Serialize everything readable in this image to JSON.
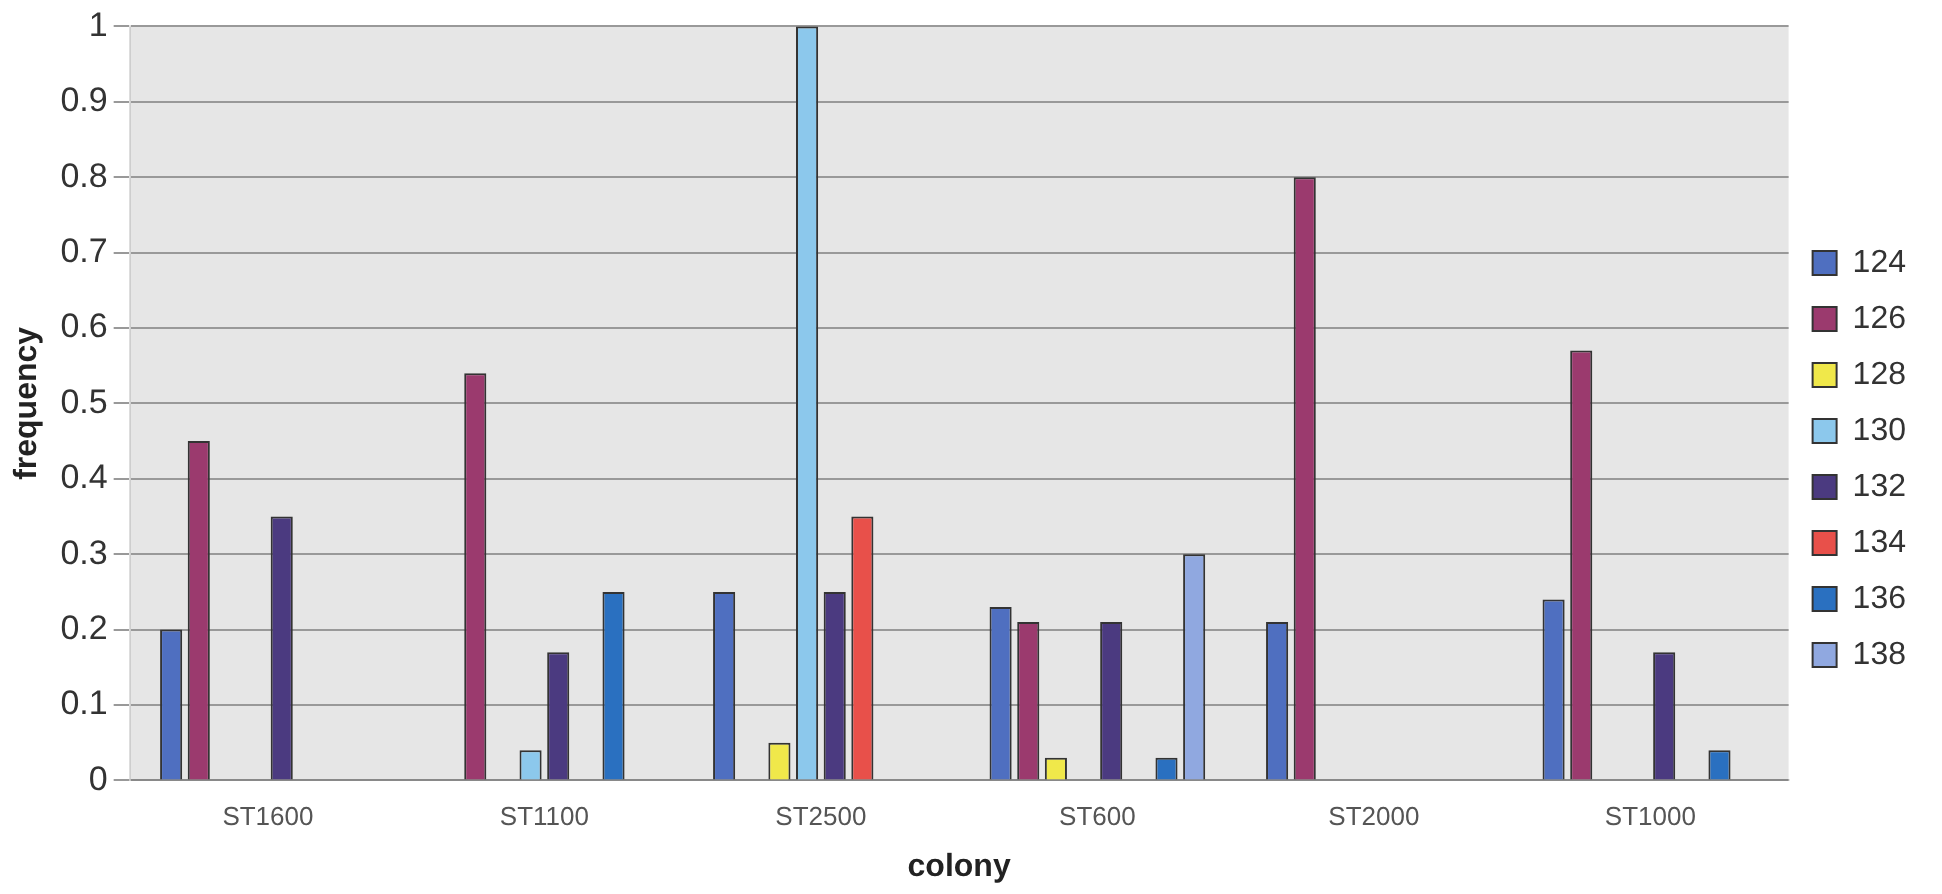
{
  "chart_data": {
    "type": "bar",
    "xlabel": "colony",
    "ylabel": "frequency",
    "categories": [
      "ST1600",
      "ST1100",
      "ST2500",
      "ST600",
      "ST2000",
      "ST1000"
    ],
    "series": [
      {
        "name": "124",
        "color": "#4f6fc0",
        "values": [
          0.2,
          0,
          0.25,
          0.23,
          0.21,
          0.24
        ]
      },
      {
        "name": "126",
        "color": "#9b3a6e",
        "values": [
          0.45,
          0.54,
          0,
          0.21,
          0.8,
          0.57
        ]
      },
      {
        "name": "128",
        "color": "#f0e84a",
        "values": [
          0,
          0,
          0.05,
          0.03,
          0,
          0
        ]
      },
      {
        "name": "130",
        "color": "#8cc8ec",
        "values": [
          0,
          0.04,
          1,
          0,
          0,
          0
        ]
      },
      {
        "name": "132",
        "color": "#4b3a80",
        "values": [
          0.35,
          0.17,
          0.25,
          0.21,
          0,
          0.17
        ]
      },
      {
        "name": "134",
        "color": "#e8504a",
        "values": [
          0,
          0,
          0.35,
          0,
          0,
          0
        ]
      },
      {
        "name": "136",
        "color": "#2a70c0",
        "values": [
          0,
          0.25,
          0,
          0.03,
          0,
          0.04
        ]
      },
      {
        "name": "138",
        "color": "#90a8e0",
        "values": [
          0,
          0,
          0,
          0.3,
          0,
          0
        ]
      }
    ],
    "ylim": [
      0,
      1
    ],
    "yticks": [
      0,
      0.1,
      0.2,
      0.3,
      0.4,
      0.5,
      0.6,
      0.7,
      0.8,
      0.9,
      1
    ],
    "grid": "y",
    "legend": "right"
  }
}
